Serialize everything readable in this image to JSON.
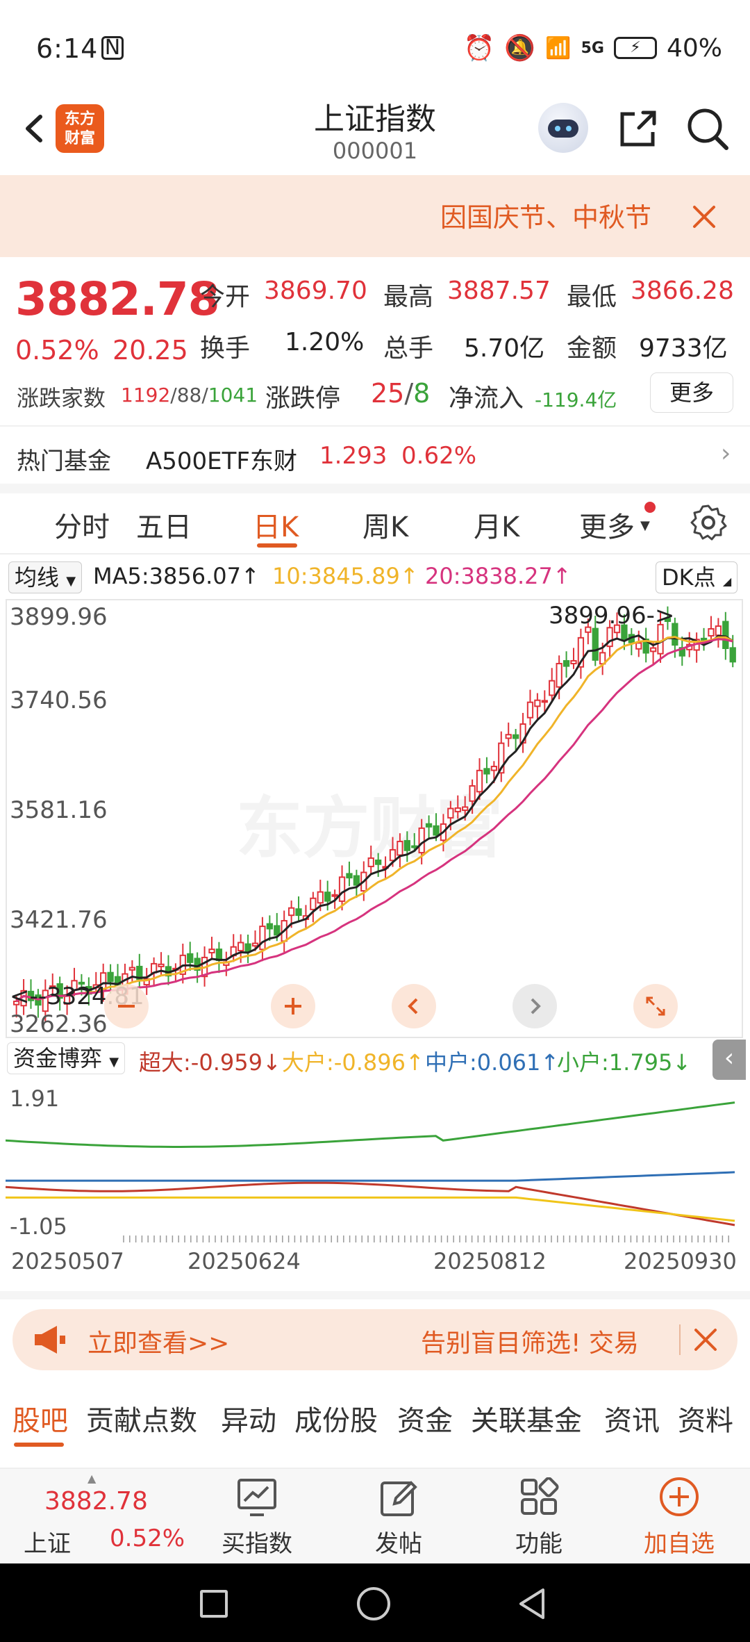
{
  "status_bar": {
    "time": "6:14",
    "battery": "40%",
    "network": "5G"
  },
  "header": {
    "title": "上证指数",
    "code": "000001",
    "logo_text": "东方财富"
  },
  "banner": {
    "text": "因国庆节、中秋节"
  },
  "quote": {
    "price": "3882.78",
    "change_pct": "0.52%",
    "change": "20.25",
    "open_label": "今开",
    "open": "3869.70",
    "high_label": "最高",
    "high": "3887.57",
    "low_label": "最低",
    "low": "3866.28",
    "turnover_label": "换手",
    "turnover": "1.20%",
    "volume_label": "总手",
    "volume": "5.70亿",
    "amount_label": "金额",
    "amount": "9733亿",
    "breadth_label": "涨跌家数",
    "breadth_up": "1192",
    "breadth_flat": "/88/",
    "breadth_down": "1041",
    "limit_label": "涨跌停",
    "limit_up": "25",
    "limit_sep": "/",
    "limit_down": "8",
    "netflow_label": "净流入",
    "netflow": "-119.4亿",
    "more": "更多"
  },
  "fund": {
    "label": "热门基金",
    "name": "A500ETF东财",
    "price": "1.293",
    "pct": "0.62%"
  },
  "tabs": [
    "分时",
    "五日",
    "日K",
    "周K",
    "月K",
    "更多"
  ],
  "ma": {
    "selector": "均线",
    "ma5": "MA5:3856.07↑",
    "ma10": "10:3845.89↑",
    "ma20": "20:3838.27↑",
    "dk": "DK点"
  },
  "kline": {
    "y_labels": [
      "3899.96",
      "3740.56",
      "3581.16",
      "3421.76",
      "3262.36"
    ],
    "high_mark": "3899.96",
    "low_mark": "3324.81",
    "watermark": "东方财富",
    "colors": {
      "up": "#e0323a",
      "down": "#3aa33a",
      "ma5": "#222222",
      "ma10": "#f0b429",
      "ma20": "#d6337e"
    }
  },
  "flow": {
    "selector": "资金博弈",
    "super": "超大:-0.959↓",
    "large": "大户:-0.896↑",
    "mid": "中户:0.061↑",
    "small": "小户:1.795↓",
    "y_top": "1.91",
    "y_bottom": "-1.05",
    "colors": {
      "super": "#c0392b",
      "large": "#f0c419",
      "mid": "#2f6fb5",
      "small": "#3aa33a"
    }
  },
  "x_axis": [
    "20250507",
    "20250624",
    "20250812",
    "20250930"
  ],
  "promo": {
    "left": "立即查看>>",
    "right": "告别盲目筛选! 交易"
  },
  "bottom_tabs": [
    "股吧",
    "贡献点数",
    "异动",
    "成份股",
    "资金",
    "关联基金",
    "资讯",
    "资料"
  ],
  "nav": {
    "index_name": "上证",
    "index_price": "3882.78",
    "index_pct": "0.52%",
    "buy_index": "买指数",
    "post": "发帖",
    "function": "功能",
    "add_watch": "加自选"
  }
}
